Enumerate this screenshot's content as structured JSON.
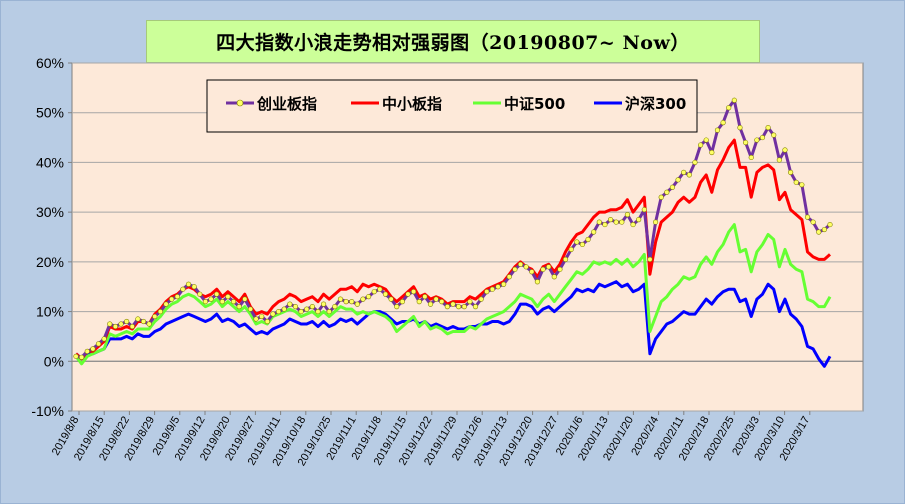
{
  "colors": {
    "background": "#b8cce4",
    "plot_area": "#fde9d9",
    "title_box": "#ccff99",
    "cyb": "#7030a0",
    "zxb": "#ff0000",
    "zz500": "#66ff33",
    "hs300": "#0000ff",
    "marker_fill": "#ffff66"
  },
  "chart_data": {
    "type": "line",
    "title": "四大指数小浪走势相对强弱图（20190807~ Now）",
    "xlabel": "",
    "ylabel": "",
    "ylim": [
      -10,
      60
    ],
    "yticks": [
      "-10%",
      "0%",
      "10%",
      "20%",
      "30%",
      "40%",
      "50%",
      "60%"
    ],
    "grid": "horizontal",
    "legend_position": "top-center",
    "x_tick_labels": [
      "2019/8/8",
      "2019/8/15",
      "2019/8/22",
      "2019/8/29",
      "2019/9/5",
      "2019/9/12",
      "2019/9/20",
      "2019/9/27",
      "2019/10/11",
      "2019/10/18",
      "2019/10/25",
      "2019/11/1",
      "2019/11/8",
      "2019/11/15",
      "2019/11/22",
      "2019/11/29",
      "2019/12/6",
      "2019/12/13",
      "2019/12/20",
      "2019/12/27",
      "2020/1/6",
      "2020/1/13",
      "2020/1/20",
      "2020/2/4",
      "2020/2/11",
      "2020/2/18",
      "2020/2/25",
      "2020/3/3",
      "2020/3/10",
      "2020/3/17"
    ],
    "series": [
      {
        "name": "创业板指",
        "key": "cyb",
        "marker": true,
        "values": [
          1.0,
          0.8,
          2.0,
          2.5,
          3.5,
          4.5,
          7.5,
          7.0,
          7.5,
          8.0,
          7.0,
          8.5,
          8.0,
          7.5,
          9.0,
          10.0,
          11.5,
          12.5,
          13.0,
          14.5,
          15.5,
          15.0,
          13.5,
          12.0,
          12.5,
          13.5,
          12.0,
          13.0,
          12.0,
          11.0,
          12.5,
          10.5,
          8.5,
          9.0,
          8.0,
          9.5,
          10.0,
          10.5,
          11.5,
          11.0,
          10.0,
          10.5,
          11.0,
          10.0,
          11.5,
          10.0,
          11.0,
          12.5,
          12.0,
          12.0,
          11.5,
          12.5,
          13.0,
          14.0,
          14.5,
          13.5,
          12.5,
          11.0,
          12.0,
          13.5,
          14.0,
          12.0,
          13.0,
          11.5,
          12.5,
          12.0,
          11.0,
          11.5,
          11.0,
          11.0,
          12.0,
          11.0,
          12.5,
          14.0,
          14.5,
          15.0,
          15.5,
          17.0,
          18.5,
          19.5,
          19.0,
          18.0,
          16.0,
          18.5,
          19.0,
          17.0,
          18.5,
          20.5,
          22.5,
          24.0,
          23.5,
          24.5,
          26.0,
          28.0,
          27.5,
          28.5,
          28.0,
          28.0,
          29.5,
          27.5,
          28.5,
          30.5,
          20.5,
          28.0,
          33.0,
          34.0,
          35.0,
          36.5,
          38.0,
          37.5,
          40.0,
          43.5,
          44.5,
          42.0,
          46.5,
          48.0,
          51.0,
          52.5,
          47.0,
          44.0,
          41.0,
          44.5,
          45.0,
          47.0,
          45.5,
          40.5,
          42.5,
          38.0,
          36.0,
          35.5,
          29.0,
          28.0,
          26.0,
          26.5,
          27.5
        ]
      },
      {
        "name": "中小板指",
        "key": "zxb",
        "marker": false,
        "values": [
          1.5,
          0.5,
          2.0,
          2.0,
          3.0,
          4.0,
          7.0,
          6.5,
          6.5,
          7.0,
          6.5,
          8.0,
          8.0,
          7.5,
          9.5,
          10.5,
          12.0,
          13.0,
          13.5,
          14.5,
          15.0,
          14.5,
          13.5,
          13.0,
          13.5,
          14.5,
          13.0,
          14.0,
          13.0,
          12.0,
          13.5,
          11.0,
          9.5,
          10.0,
          9.5,
          11.0,
          12.0,
          12.5,
          13.5,
          13.0,
          12.0,
          12.5,
          13.0,
          12.0,
          13.5,
          12.5,
          13.5,
          14.5,
          14.5,
          15.0,
          14.0,
          15.5,
          15.0,
          15.5,
          15.0,
          14.5,
          13.0,
          12.0,
          13.0,
          14.0,
          15.0,
          13.0,
          13.5,
          12.5,
          13.0,
          12.5,
          11.5,
          12.0,
          12.0,
          12.0,
          13.0,
          12.5,
          13.5,
          14.5,
          15.0,
          15.5,
          16.0,
          17.5,
          19.0,
          20.0,
          19.0,
          18.5,
          17.0,
          19.0,
          19.5,
          18.0,
          19.5,
          22.0,
          24.0,
          25.5,
          26.0,
          27.5,
          29.0,
          30.0,
          30.0,
          30.5,
          30.5,
          31.0,
          32.5,
          30.0,
          31.5,
          33.0,
          17.5,
          24.0,
          28.0,
          29.0,
          30.0,
          32.0,
          33.0,
          32.0,
          33.0,
          36.0,
          37.5,
          34.0,
          38.5,
          40.5,
          43.0,
          44.5,
          39.0,
          39.0,
          33.0,
          38.0,
          39.0,
          39.5,
          38.5,
          32.5,
          34.0,
          30.5,
          29.5,
          28.5,
          22.0,
          21.0,
          20.5,
          20.5,
          21.5
        ]
      },
      {
        "name": "中证500",
        "key": "zz500",
        "marker": false,
        "values": [
          1.0,
          -0.5,
          1.0,
          1.5,
          2.0,
          2.5,
          5.5,
          5.0,
          5.5,
          6.0,
          5.5,
          6.5,
          6.5,
          6.5,
          8.0,
          9.0,
          10.5,
          11.5,
          12.0,
          13.0,
          13.5,
          13.0,
          12.0,
          11.0,
          11.5,
          12.5,
          11.0,
          12.0,
          11.0,
          10.0,
          11.0,
          9.5,
          7.5,
          8.0,
          7.5,
          9.0,
          9.5,
          10.0,
          10.5,
          10.0,
          9.0,
          9.5,
          10.0,
          9.0,
          10.0,
          9.0,
          10.0,
          11.0,
          10.5,
          10.5,
          9.5,
          10.0,
          9.5,
          10.0,
          9.5,
          9.0,
          8.0,
          6.0,
          7.0,
          8.0,
          9.0,
          7.0,
          8.0,
          6.5,
          7.0,
          6.5,
          5.5,
          6.0,
          6.0,
          6.0,
          7.0,
          6.5,
          7.5,
          8.5,
          9.0,
          9.5,
          10.0,
          11.0,
          12.0,
          13.5,
          13.0,
          12.5,
          11.0,
          12.5,
          13.5,
          12.0,
          13.5,
          15.0,
          16.5,
          18.0,
          17.5,
          18.5,
          20.0,
          19.5,
          20.0,
          19.5,
          20.5,
          19.5,
          20.5,
          19.0,
          20.0,
          21.5,
          6.0,
          9.0,
          12.0,
          13.0,
          14.5,
          15.5,
          17.0,
          16.5,
          17.0,
          19.5,
          21.0,
          19.5,
          22.0,
          23.5,
          26.0,
          27.5,
          22.0,
          22.5,
          18.0,
          22.0,
          23.5,
          25.5,
          24.5,
          19.0,
          22.5,
          19.5,
          18.5,
          18.0,
          12.5,
          12.0,
          11.0,
          11.0,
          13.0
        ]
      },
      {
        "name": "沪深300",
        "key": "hs300",
        "marker": false,
        "values": [
          1.5,
          0.5,
          1.5,
          1.5,
          2.0,
          2.5,
          4.5,
          4.5,
          4.5,
          5.0,
          4.5,
          5.5,
          5.0,
          5.0,
          6.0,
          6.5,
          7.5,
          8.0,
          8.5,
          9.0,
          9.5,
          9.0,
          8.5,
          8.0,
          8.5,
          9.5,
          8.0,
          8.5,
          8.0,
          7.0,
          7.5,
          6.5,
          5.5,
          6.0,
          5.5,
          6.5,
          7.0,
          7.5,
          8.5,
          8.0,
          7.5,
          7.5,
          8.0,
          7.0,
          8.0,
          7.0,
          7.5,
          8.5,
          8.0,
          8.5,
          7.5,
          8.5,
          9.5,
          10.0,
          10.0,
          9.5,
          8.5,
          7.5,
          8.0,
          8.0,
          8.5,
          7.5,
          8.0,
          7.0,
          7.5,
          7.0,
          6.5,
          7.0,
          6.5,
          6.5,
          7.0,
          7.0,
          7.5,
          7.5,
          8.0,
          8.0,
          7.5,
          8.0,
          9.5,
          11.5,
          11.5,
          11.0,
          9.5,
          10.5,
          11.0,
          10.0,
          11.0,
          12.0,
          13.0,
          14.5,
          14.0,
          14.5,
          14.0,
          15.5,
          15.0,
          15.5,
          16.0,
          15.0,
          15.5,
          14.0,
          14.5,
          15.5,
          1.5,
          4.5,
          6.0,
          7.5,
          8.0,
          9.0,
          10.0,
          9.5,
          9.5,
          11.0,
          12.5,
          11.5,
          13.0,
          14.0,
          14.5,
          14.5,
          12.0,
          12.5,
          9.0,
          12.5,
          13.5,
          15.5,
          14.5,
          10.0,
          12.5,
          9.5,
          8.5,
          7.0,
          3.0,
          2.5,
          0.5,
          -1.0,
          1.0
        ]
      }
    ]
  }
}
